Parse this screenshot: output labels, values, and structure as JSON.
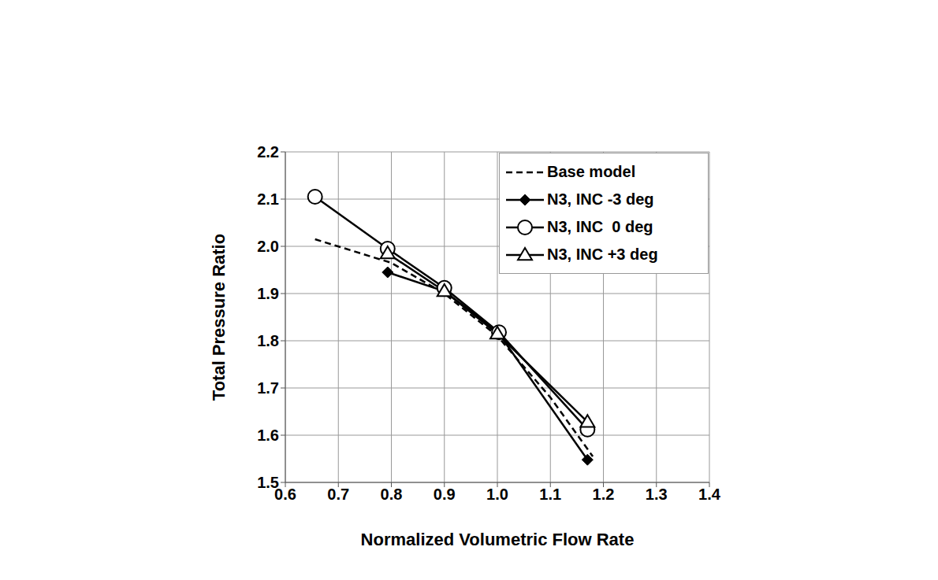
{
  "chart_data": {
    "type": "line",
    "x_label": "Normalized Volumetric Flow Rate",
    "y_label": "Total Pressure Ratio",
    "xlim": [
      0.6,
      1.4
    ],
    "xticks": [
      0.6,
      0.7,
      0.8,
      0.9,
      {
        "value": 1,
        "label": "1.0"
      },
      1.1,
      1.2,
      1.3,
      1.4
    ],
    "ylim": [
      1.5,
      2.2
    ],
    "yticks": [
      1.5,
      1.6,
      1.7,
      1.8,
      1.9,
      {
        "value": 2,
        "label": "2.0"
      },
      2.1,
      2.2
    ],
    "grid": true,
    "legend": "top right",
    "series": [
      {
        "name": "Base model",
        "color": "#000000",
        "marker": "none",
        "line_style": "dashed",
        "x": [
          0.656,
          0.8,
          0.9,
          1.0,
          1.1,
          1.18
        ],
        "values": [
          2.015,
          1.965,
          1.9,
          1.81,
          1.68,
          1.555
        ]
      },
      {
        "name": "N3, INC -3 deg",
        "color": "#000000",
        "marker": "diamond",
        "line_style": "solid",
        "x": [
          0.793,
          0.9,
          1.0,
          1.17
        ],
        "values": [
          1.945,
          1.905,
          1.82,
          1.548
        ]
      },
      {
        "name": "N3, INC  0 deg",
        "color": "#000000",
        "marker": "circle",
        "line_style": "solid",
        "x": [
          0.656,
          0.793,
          0.9,
          1.003,
          1.17
        ],
        "values": [
          2.105,
          1.995,
          1.912,
          1.818,
          1.612
        ]
      },
      {
        "name": "N3, INC +3 deg",
        "color": "#000000",
        "marker": "triangle",
        "line_style": "solid",
        "x": [
          0.793,
          0.9,
          1.0,
          1.17
        ],
        "values": [
          1.985,
          1.905,
          1.815,
          1.628
        ]
      }
    ]
  }
}
